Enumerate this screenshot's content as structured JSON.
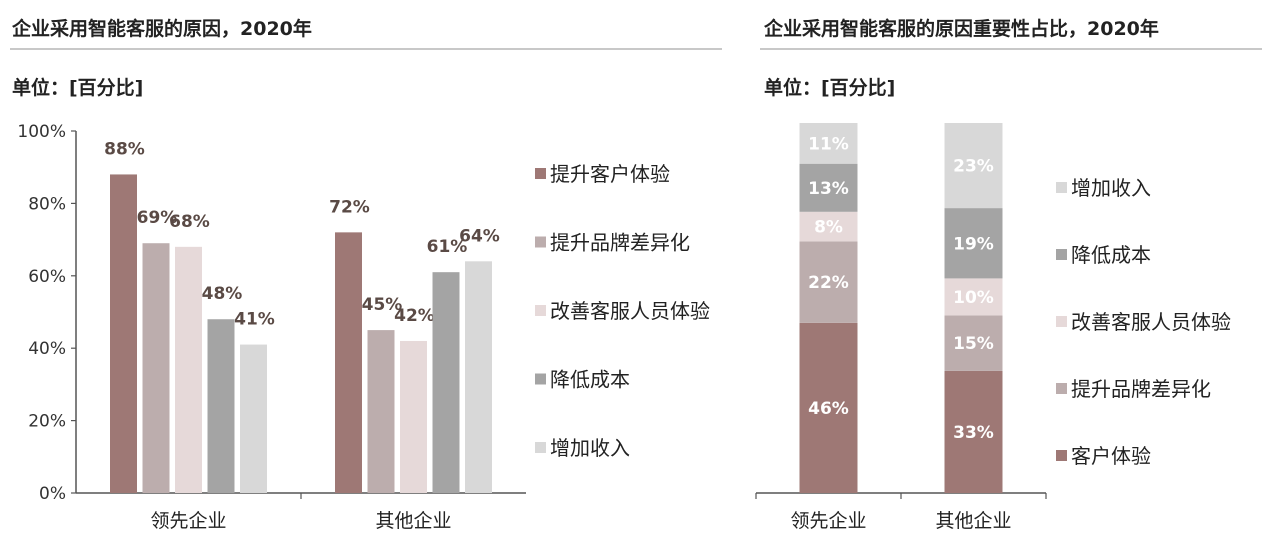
{
  "left": {
    "title": "企业采用智能客服的原因，2020年",
    "unit": "单位：[百分比]",
    "chart_data": {
      "type": "bar",
      "categories": [
        "领先企业",
        "其他企业"
      ],
      "series": [
        {
          "name": "提升客户体验",
          "values": [
            88,
            72
          ],
          "labels": [
            "88%",
            "72%"
          ],
          "color": "#9e7875"
        },
        {
          "name": "提升品牌差异化",
          "values": [
            69,
            45
          ],
          "labels": [
            "69%",
            "45%"
          ],
          "color": "#bcadad"
        },
        {
          "name": "改善客服人员体验",
          "values": [
            68,
            42
          ],
          "labels": [
            "68%",
            "42%"
          ],
          "color": "#e6d9d9"
        },
        {
          "name": "降低成本",
          "values": [
            48,
            61
          ],
          "labels": [
            "48%",
            "61%"
          ],
          "color": "#a4a4a4"
        },
        {
          "name": "增加收入",
          "values": [
            41,
            64
          ],
          "labels": [
            "41%",
            "64%"
          ],
          "color": "#d8d8d8"
        }
      ],
      "ylim": [
        0,
        100
      ],
      "yticks": [
        "0%",
        "20%",
        "40%",
        "60%",
        "80%",
        "100%"
      ],
      "legend": "right"
    }
  },
  "right": {
    "title": "企业采用智能客服的原因重要性占比，2020年",
    "unit": "单位：[百分比]",
    "chart_data": {
      "type": "bar",
      "stacked": true,
      "categories": [
        "领先企业",
        "其他企业"
      ],
      "series": [
        {
          "name": "客户体验",
          "values": [
            46,
            33
          ],
          "labels": [
            "46%",
            "33%"
          ],
          "color": "#9e7875"
        },
        {
          "name": "提升品牌差异化",
          "values": [
            22,
            15
          ],
          "labels": [
            "22%",
            "15%"
          ],
          "color": "#bcadad"
        },
        {
          "name": "改善客服人员体验",
          "values": [
            8,
            10
          ],
          "labels": [
            "8%",
            "10%"
          ],
          "color": "#e6d9d9"
        },
        {
          "name": "降低成本",
          "values": [
            13,
            19
          ],
          "labels": [
            "13%",
            "19%"
          ],
          "color": "#a4a4a4"
        },
        {
          "name": "增加收入",
          "values": [
            11,
            23
          ],
          "labels": [
            "11%",
            "23%"
          ],
          "color": "#d8d8d8"
        }
      ],
      "ylim": [
        0,
        100
      ],
      "legend": "right"
    }
  }
}
